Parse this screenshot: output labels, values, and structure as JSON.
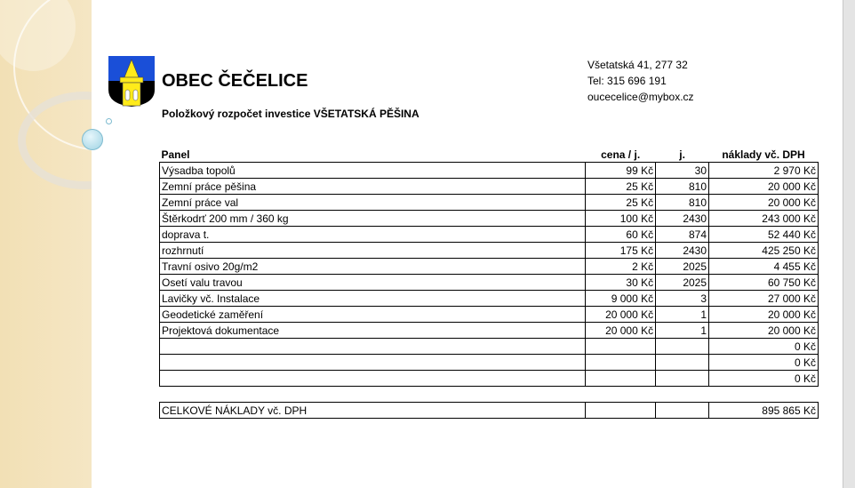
{
  "header": {
    "title": "OBEC ČEČELICE",
    "subtitle": "Položkový rozpočet investice VŠETATSKÁ PĚŠINA",
    "logo_icon": "coat-of-arms-tower"
  },
  "contact": {
    "address": "Všetatská 41, 277 32",
    "phone": "Tel: 315 696 191",
    "email": "oucecelice@mybox.cz"
  },
  "table": {
    "columns": [
      "Panel",
      "cena / j.",
      "j.",
      "náklady vč. DPH"
    ],
    "rows": [
      [
        "Výsadba topolů",
        "99 Kč",
        "30",
        "2 970 Kč"
      ],
      [
        "Zemní práce pěšina",
        "25 Kč",
        "810",
        "20 000 Kč"
      ],
      [
        "Zemní práce val",
        "25 Kč",
        "810",
        "20 000 Kč"
      ],
      [
        "Štěrkodrť 200 mm / 360 kg",
        "100 Kč",
        "2430",
        "243 000 Kč"
      ],
      [
        "doprava t.",
        "60 Kč",
        "874",
        "52 440 Kč"
      ],
      [
        "rozhrnutí",
        "175 Kč",
        "2430",
        "425 250 Kč"
      ],
      [
        "Travní osivo 20g/m2",
        "2 Kč",
        "2025",
        "4 455 Kč"
      ],
      [
        "Osetí valu travou",
        "30 Kč",
        "2025",
        "60 750 Kč"
      ],
      [
        "Lavičky vč. Instalace",
        "9 000 Kč",
        "3",
        "27 000 Kč"
      ],
      [
        "Geodetické zaměření",
        "20 000 Kč",
        "1",
        "20 000 Kč"
      ],
      [
        "Projektová dokumentace",
        "20 000 Kč",
        "1",
        "20 000 Kč"
      ],
      [
        "",
        "",
        "",
        "0 Kč"
      ],
      [
        "",
        "",
        "",
        "0 Kč"
      ],
      [
        "",
        "",
        "",
        "0 Kč"
      ]
    ],
    "total": {
      "label": "CELKOVÉ NÁKLADY vč. DPH",
      "value": "895 865 Kč"
    }
  }
}
